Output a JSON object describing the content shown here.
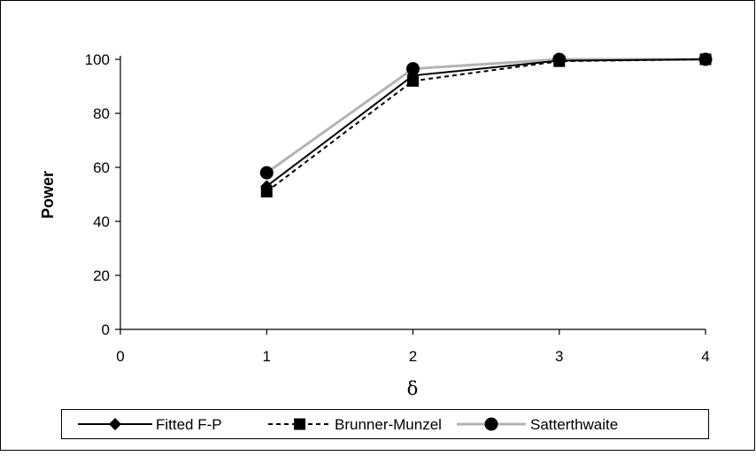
{
  "chart_data": {
    "type": "line",
    "xlabel": "δ",
    "ylabel": "Power",
    "xlim": [
      0,
      4
    ],
    "ylim": [
      0,
      100
    ],
    "x_ticks": [
      "0",
      "1",
      "2",
      "3",
      "4"
    ],
    "y_ticks": [
      "0",
      "20",
      "40",
      "60",
      "80",
      "100"
    ],
    "x": [
      1,
      2,
      3,
      4
    ],
    "grid": false,
    "legend": "bottom",
    "series": [
      {
        "name": "Fitted F-P",
        "values": [
          53,
          94,
          99.5,
          100
        ],
        "color": "#000000",
        "style": "solid",
        "marker": "diamond"
      },
      {
        "name": "Brunner-Munzel",
        "values": [
          51,
          92,
          99.3,
          100
        ],
        "color": "#000000",
        "style": "dashed",
        "marker": "square"
      },
      {
        "name": "Satterthwaite",
        "values": [
          58,
          96.5,
          100,
          100
        ],
        "color": "#b3b3b3",
        "style": "solid",
        "marker": "circle"
      }
    ]
  }
}
